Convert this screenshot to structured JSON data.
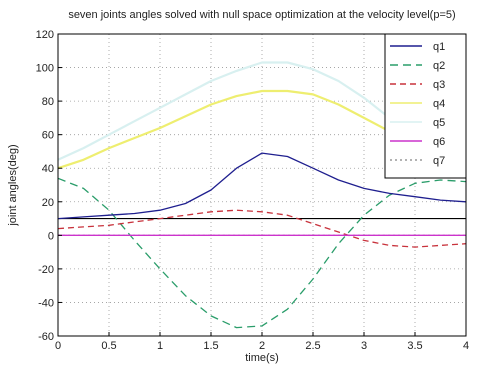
{
  "chart_data": {
    "type": "line",
    "title": "seven joints angles solved with null space optimization at the velocity level(p=5)",
    "xlabel": "time(s)",
    "ylabel": "joint angles(deg)",
    "xlim": [
      0,
      4
    ],
    "ylim": [
      -60,
      120
    ],
    "xticks": [
      0,
      0.5,
      1,
      1.5,
      2,
      2.5,
      3,
      3.5,
      4
    ],
    "xtick_labels": [
      "0",
      "0.5",
      "1",
      "1.5",
      "2",
      "2.5",
      "3",
      "3.5",
      "4"
    ],
    "yticks": [
      -60,
      -40,
      -20,
      0,
      20,
      40,
      60,
      80,
      100,
      120
    ],
    "ytick_labels": [
      "-60",
      "-40",
      "-20",
      "0",
      "20",
      "40",
      "60",
      "80",
      "100",
      "120"
    ],
    "grid": true,
    "legend_position": "top-right",
    "x": [
      0,
      0.25,
      0.5,
      0.75,
      1,
      1.25,
      1.5,
      1.75,
      2,
      2.25,
      2.5,
      2.75,
      3,
      3.25,
      3.5,
      3.75,
      4
    ],
    "series": [
      {
        "name": "q1",
        "color": "#1f1f8f",
        "dash": "",
        "values": [
          10,
          11,
          12,
          13,
          15,
          19,
          27,
          40,
          49,
          47,
          40,
          33,
          28,
          25,
          23,
          21,
          20
        ]
      },
      {
        "name": "q2",
        "color": "#2a9d6a",
        "dash": "8,5",
        "values": [
          34,
          28,
          15,
          -3,
          -20,
          -36,
          -48,
          -55,
          -54,
          -44,
          -26,
          -5,
          12,
          24,
          31,
          33,
          32
        ]
      },
      {
        "name": "q3",
        "color": "#c8323c",
        "dash": "6,4",
        "values": [
          4,
          5,
          6,
          8,
          10,
          12,
          14,
          15,
          14,
          12,
          7,
          2,
          -3,
          -6,
          -7,
          -6,
          -5
        ]
      },
      {
        "name": "q4",
        "color": "#eeee70",
        "dash": "",
        "values": [
          40,
          45,
          52,
          58,
          64,
          71,
          78,
          83,
          86,
          86,
          84,
          78,
          70,
          62,
          52,
          44,
          40
        ]
      },
      {
        "name": "q5",
        "color": "#d8f0f0",
        "dash": "",
        "values": [
          45,
          52,
          60,
          68,
          76,
          84,
          92,
          98,
          103,
          103,
          99,
          92,
          82,
          70,
          60,
          51,
          46
        ]
      },
      {
        "name": "q6",
        "color": "#cc33cc",
        "dash": "",
        "values": [
          0,
          0,
          0,
          0,
          0,
          0,
          0,
          0,
          0,
          0,
          0,
          0,
          0,
          0,
          0,
          0,
          0
        ]
      },
      {
        "name": "q7",
        "color": "#999999",
        "dash": "2,3",
        "values": [
          0,
          0,
          0,
          0,
          0,
          0,
          0,
          0,
          0,
          0,
          0,
          0,
          0,
          0,
          0,
          0,
          0
        ]
      }
    ],
    "reference_lines": [
      {
        "y": 10,
        "color": "#000000"
      }
    ]
  }
}
